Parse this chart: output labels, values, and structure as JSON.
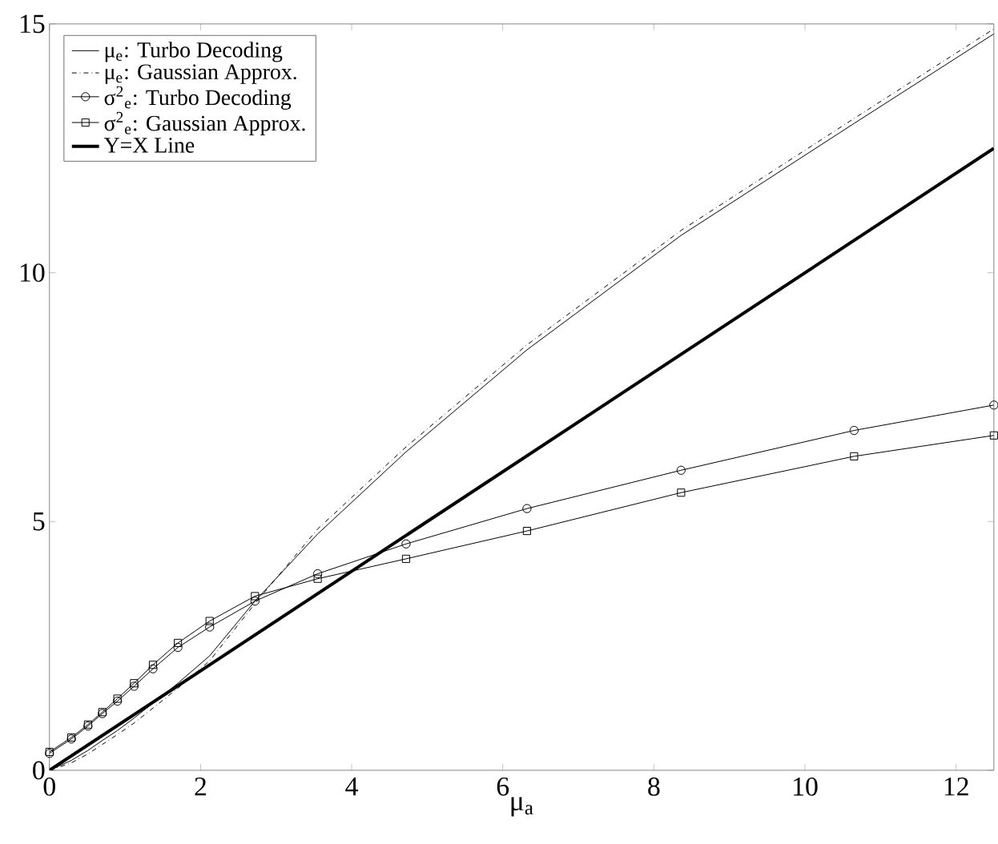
{
  "chart_data": {
    "type": "line",
    "xlabel": "μ$_{a}$",
    "x": [
      0,
      0.29,
      0.51,
      0.7,
      0.9,
      1.12,
      1.37,
      1.7,
      2.12,
      2.72,
      3.55,
      4.72,
      6.32,
      8.36,
      10.65,
      12.5
    ],
    "series": [
      {
        "name": "μ$_{e}$: Turbo Decoding",
        "color": "#000000",
        "line_style": "solid",
        "marker": "none",
        "values": [
          0,
          0.2,
          0.4,
          0.6,
          0.8,
          1.05,
          1.35,
          1.75,
          2.3,
          3.4,
          4.75,
          6.4,
          8.45,
          10.75,
          13.0,
          14.8
        ]
      },
      {
        "name": "μ$_{e}$: Gaussian Approx.",
        "color": "#000000",
        "line_style": "dashdot",
        "marker": "none",
        "values": [
          0,
          0.15,
          0.33,
          0.52,
          0.72,
          0.95,
          1.25,
          1.65,
          2.2,
          3.35,
          4.85,
          6.5,
          8.55,
          10.85,
          13.1,
          14.9
        ]
      },
      {
        "name": "σ$^{2}$$_{e}$: Turbo Decoding",
        "color": "#000000",
        "line_style": "solid",
        "marker": "circle",
        "values": [
          0.34,
          0.63,
          0.89,
          1.14,
          1.39,
          1.69,
          2.04,
          2.47,
          2.88,
          3.4,
          3.95,
          4.55,
          5.26,
          6.03,
          6.83,
          7.34
        ]
      },
      {
        "name": "σ$^{2}$$_{e}$: Gaussian Approx.",
        "color": "#000000",
        "line_style": "solid",
        "marker": "square",
        "values": [
          0.37,
          0.66,
          0.92,
          1.17,
          1.44,
          1.75,
          2.12,
          2.56,
          3.0,
          3.5,
          3.85,
          4.25,
          4.81,
          5.58,
          6.31,
          6.73
        ]
      },
      {
        "name": "Y=X Line",
        "color": "#000000",
        "line_style": "solid",
        "marker": "none",
        "x": [
          0,
          12.5
        ],
        "values": [
          0,
          12.5
        ]
      }
    ],
    "xlim": [
      0,
      12.5
    ],
    "ylim": [
      0,
      15
    ],
    "xticks": [
      0,
      2,
      4,
      6,
      8,
      10,
      12
    ],
    "yticks": [
      0,
      5,
      10,
      15
    ],
    "grid": false,
    "legend": "top left"
  }
}
